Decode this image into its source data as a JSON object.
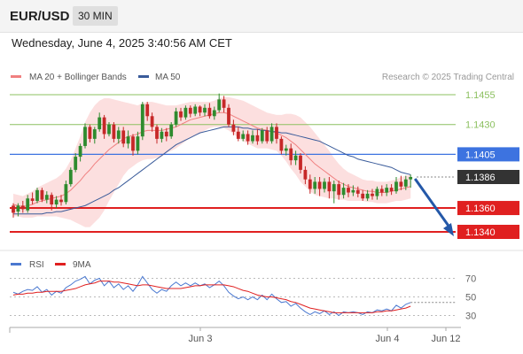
{
  "header": {
    "symbol": "EUR/USD",
    "timeframe": "30 MIN",
    "datetime": "Wednesday, June 4, 2025 3:40:56 AM CET"
  },
  "colors": {
    "up": "#2e8b2e",
    "down": "#c62828",
    "ma20": "#f08080",
    "bands": "#fcd9d9",
    "ma50": "#3a5b9a",
    "resistance_green": "#8cc060",
    "pivot_blue": "#3d73e0",
    "support_red": "#e02020",
    "current": "#333333",
    "rsi": "#4a78d0",
    "ma9": "#e02020"
  },
  "chart_data": [
    {
      "type": "candlestick",
      "legend": [
        "MA 20 + Bollinger Bands",
        "MA 50"
      ],
      "source": "Research © 2025 Trading Central",
      "ylim": [
        1.1325,
        1.1465
      ],
      "levels": [
        {
          "value": 1.1455,
          "label": "1.1455",
          "kind": "resistance"
        },
        {
          "value": 1.143,
          "label": "1.1430",
          "kind": "resistance"
        },
        {
          "value": 1.1405,
          "label": "1.1405",
          "kind": "pivot"
        },
        {
          "value": 1.1386,
          "label": "1.1386",
          "kind": "current"
        },
        {
          "value": 1.136,
          "label": "1.1360",
          "kind": "support"
        },
        {
          "value": 1.134,
          "label": "1.1340",
          "kind": "support"
        }
      ],
      "forecast_arrow": {
        "from": 1.1386,
        "to": 1.134
      },
      "candles": [
        [
          1.1362,
          1.1356,
          1.1364,
          1.1352
        ],
        [
          1.1357,
          1.1362,
          1.1364,
          1.1353
        ],
        [
          1.1362,
          1.1359,
          1.1366,
          1.1356
        ],
        [
          1.1358,
          1.1368,
          1.1371,
          1.1356
        ],
        [
          1.1368,
          1.1366,
          1.1373,
          1.1363
        ],
        [
          1.1366,
          1.1375,
          1.1377,
          1.1364
        ],
        [
          1.1375,
          1.1367,
          1.1377,
          1.1365
        ],
        [
          1.1367,
          1.1371,
          1.1374,
          1.1364
        ],
        [
          1.1371,
          1.1363,
          1.1373,
          1.1358
        ],
        [
          1.1363,
          1.1367,
          1.137,
          1.136
        ],
        [
          1.1367,
          1.1365,
          1.1371,
          1.1362
        ],
        [
          1.1365,
          1.138,
          1.1383,
          1.1363
        ],
        [
          1.138,
          1.1392,
          1.1394,
          1.1378
        ],
        [
          1.1392,
          1.1403,
          1.1406,
          1.139
        ],
        [
          1.1403,
          1.1412,
          1.1414,
          1.1399
        ],
        [
          1.1412,
          1.1428,
          1.1431,
          1.141
        ],
        [
          1.1428,
          1.1418,
          1.143,
          1.1415
        ],
        [
          1.1418,
          1.1426,
          1.1428,
          1.1414
        ],
        [
          1.1426,
          1.1436,
          1.144,
          1.1424
        ],
        [
          1.1436,
          1.1422,
          1.1438,
          1.1418
        ],
        [
          1.1422,
          1.143,
          1.1432,
          1.142
        ],
        [
          1.143,
          1.1418,
          1.1432,
          1.1415
        ],
        [
          1.1418,
          1.1425,
          1.1428,
          1.1414
        ],
        [
          1.1425,
          1.1414,
          1.1428,
          1.1411
        ],
        [
          1.1414,
          1.142,
          1.1425,
          1.141
        ],
        [
          1.142,
          1.1408,
          1.1422,
          1.1404
        ],
        [
          1.1408,
          1.142,
          1.1424,
          1.1405
        ],
        [
          1.142,
          1.1447,
          1.1449,
          1.1417
        ],
        [
          1.1447,
          1.1437,
          1.1449,
          1.1433
        ],
        [
          1.1437,
          1.1428,
          1.144,
          1.1424
        ],
        [
          1.1428,
          1.1418,
          1.143,
          1.1414
        ],
        [
          1.1418,
          1.1424,
          1.1427,
          1.1415
        ],
        [
          1.1424,
          1.142,
          1.1427,
          1.1416
        ],
        [
          1.142,
          1.143,
          1.1432,
          1.1418
        ],
        [
          1.143,
          1.1441,
          1.1444,
          1.1428
        ],
        [
          1.1441,
          1.1436,
          1.1444,
          1.1433
        ],
        [
          1.1436,
          1.1444,
          1.1446,
          1.1434
        ],
        [
          1.1444,
          1.1439,
          1.1446,
          1.1436
        ],
        [
          1.1439,
          1.1445,
          1.1447,
          1.1437
        ],
        [
          1.1445,
          1.144,
          1.1446,
          1.1437
        ],
        [
          1.144,
          1.1444,
          1.1447,
          1.1437
        ],
        [
          1.1444,
          1.1437,
          1.1448,
          1.1435
        ],
        [
          1.1437,
          1.1442,
          1.1445,
          1.1434
        ],
        [
          1.1442,
          1.1451,
          1.1456,
          1.144
        ],
        [
          1.1451,
          1.1444,
          1.1454,
          1.144
        ],
        [
          1.1444,
          1.143,
          1.1447,
          1.1428
        ],
        [
          1.143,
          1.1424,
          1.1434,
          1.1421
        ],
        [
          1.1424,
          1.1418,
          1.1428,
          1.1416
        ],
        [
          1.1418,
          1.1422,
          1.1425,
          1.1416
        ],
        [
          1.1422,
          1.1416,
          1.1425,
          1.1413
        ],
        [
          1.1416,
          1.1421,
          1.1425,
          1.1414
        ],
        [
          1.1421,
          1.1416,
          1.1426,
          1.1413
        ],
        [
          1.1416,
          1.1425,
          1.1427,
          1.1414
        ],
        [
          1.1425,
          1.1416,
          1.1428,
          1.1414
        ],
        [
          1.1416,
          1.1428,
          1.1431,
          1.1414
        ],
        [
          1.1428,
          1.1418,
          1.1431,
          1.1414
        ],
        [
          1.1418,
          1.1408,
          1.142,
          1.1405
        ],
        [
          1.1408,
          1.141,
          1.1413,
          1.1404
        ],
        [
          1.141,
          1.14,
          1.1414,
          1.1396
        ],
        [
          1.14,
          1.1404,
          1.1408,
          1.1396
        ],
        [
          1.1404,
          1.1392,
          1.1406,
          1.1389
        ],
        [
          1.1392,
          1.1384,
          1.1395,
          1.138
        ],
        [
          1.1384,
          1.1376,
          1.1388,
          1.1372
        ],
        [
          1.1376,
          1.1382,
          1.1386,
          1.1372
        ],
        [
          1.1382,
          1.1376,
          1.1386,
          1.137
        ],
        [
          1.1376,
          1.1382,
          1.1385,
          1.1373
        ],
        [
          1.1382,
          1.1374,
          1.1386,
          1.1368
        ],
        [
          1.1374,
          1.138,
          1.1383,
          1.1364
        ],
        [
          1.138,
          1.1371,
          1.1383,
          1.1367
        ],
        [
          1.1371,
          1.1377,
          1.1381,
          1.1368
        ],
        [
          1.1377,
          1.1373,
          1.138,
          1.1369
        ],
        [
          1.1373,
          1.1375,
          1.1379,
          1.137
        ],
        [
          1.1375,
          1.1372,
          1.1378,
          1.1369
        ],
        [
          1.1372,
          1.1368,
          1.1375,
          1.1366
        ],
        [
          1.1368,
          1.1372,
          1.1375,
          1.1366
        ],
        [
          1.1372,
          1.137,
          1.1376,
          1.1367
        ],
        [
          1.137,
          1.1376,
          1.1378,
          1.1367
        ],
        [
          1.1376,
          1.1373,
          1.1379,
          1.137
        ],
        [
          1.1373,
          1.1377,
          1.138,
          1.137
        ],
        [
          1.1377,
          1.1374,
          1.138,
          1.1371
        ],
        [
          1.1374,
          1.1382,
          1.1386,
          1.1372
        ],
        [
          1.1382,
          1.1378,
          1.1387,
          1.1375
        ],
        [
          1.1378,
          1.1384,
          1.1387,
          1.1375
        ],
        [
          1.1384,
          1.1386,
          1.1388,
          1.1377
        ]
      ],
      "ma20": [
        1.1363,
        1.1362,
        1.1361,
        1.1362,
        1.1363,
        1.1365,
        1.1366,
        1.1367,
        1.1368,
        1.1369,
        1.137,
        1.1372,
        1.1375,
        1.1379,
        1.1383,
        1.1388,
        1.1392,
        1.1397,
        1.1401,
        1.1405,
        1.1409,
        1.1412,
        1.1415,
        1.1418,
        1.142,
        1.1421,
        1.1422,
        1.1424,
        1.1425,
        1.1425,
        1.1425,
        1.1425,
        1.1426,
        1.1427,
        1.1428,
        1.143,
        1.1432,
        1.1434,
        1.1435,
        1.1436,
        1.1437,
        1.1438,
        1.1439,
        1.144,
        1.144,
        1.1439,
        1.1437,
        1.1435,
        1.1433,
        1.1431,
        1.1429,
        1.1427,
        1.1426,
        1.1425,
        1.1424,
        1.1423,
        1.1421,
        1.1419,
        1.1416,
        1.1413,
        1.1409,
        1.1405,
        1.1401,
        1.1397,
        1.1394,
        1.1391,
        1.1388,
        1.1385,
        1.1382,
        1.138,
        1.1378,
        1.1377,
        1.1376,
        1.1375,
        1.1374,
        1.1374,
        1.1373,
        1.1373,
        1.1373,
        1.1374,
        1.1375,
        1.1376,
        1.1377,
        1.1378
      ],
      "bb_upper": [
        1.1372,
        1.1371,
        1.137,
        1.1372,
        1.1374,
        1.1377,
        1.1379,
        1.1381,
        1.1383,
        1.1385,
        1.1388,
        1.1393,
        1.14,
        1.141,
        1.142,
        1.1432,
        1.144,
        1.1446,
        1.145,
        1.1452,
        1.1452,
        1.1451,
        1.145,
        1.1449,
        1.1448,
        1.1447,
        1.1446,
        1.1448,
        1.1449,
        1.1449,
        1.1448,
        1.1447,
        1.1446,
        1.1446,
        1.1446,
        1.1447,
        1.1448,
        1.1449,
        1.1449,
        1.1449,
        1.1449,
        1.1449,
        1.145,
        1.1452,
        1.1453,
        1.1453,
        1.1452,
        1.1451,
        1.145,
        1.1448,
        1.1446,
        1.1444,
        1.1442,
        1.144,
        1.1439,
        1.1438,
        1.1438,
        1.1439,
        1.1439,
        1.1438,
        1.1436,
        1.1432,
        1.1428,
        1.1423,
        1.1418,
        1.1413,
        1.1408,
        1.1402,
        1.1397,
        1.1393,
        1.139,
        1.1388,
        1.1386,
        1.1384,
        1.1383,
        1.1383,
        1.1382,
        1.1382,
        1.1382,
        1.1383,
        1.1384,
        1.1386,
        1.1387,
        1.1388
      ],
      "bb_lower": [
        1.1353,
        1.1353,
        1.1352,
        1.1352,
        1.1352,
        1.1353,
        1.1353,
        1.1353,
        1.1353,
        1.1353,
        1.1352,
        1.1351,
        1.135,
        1.1348,
        1.1346,
        1.1344,
        1.1344,
        1.1348,
        1.1352,
        1.1358,
        1.1366,
        1.1373,
        1.138,
        1.1387,
        1.1392,
        1.1395,
        1.1398,
        1.14,
        1.1401,
        1.1401,
        1.1402,
        1.1403,
        1.1406,
        1.1408,
        1.141,
        1.1413,
        1.1416,
        1.1419,
        1.1421,
        1.1423,
        1.1425,
        1.1427,
        1.1428,
        1.1428,
        1.1427,
        1.1425,
        1.1422,
        1.1419,
        1.1416,
        1.1414,
        1.1412,
        1.141,
        1.141,
        1.141,
        1.1409,
        1.1408,
        1.1404,
        1.1399,
        1.1393,
        1.1388,
        1.1382,
        1.1378,
        1.1374,
        1.1371,
        1.137,
        1.1369,
        1.1368,
        1.1368,
        1.1367,
        1.1367,
        1.1366,
        1.1366,
        1.1366,
        1.1366,
        1.1365,
        1.1365,
        1.1364,
        1.1364,
        1.1364,
        1.1365,
        1.1366,
        1.1366,
        1.1367,
        1.1368
      ],
      "ma50": [
        1.1355,
        1.1355,
        1.1355,
        1.1355,
        1.1355,
        1.1355,
        1.1355,
        1.1356,
        1.1356,
        1.1357,
        1.1357,
        1.1358,
        1.1359,
        1.136,
        1.1361,
        1.1362,
        1.1364,
        1.1366,
        1.1368,
        1.137,
        1.1372,
        1.1375,
        1.1377,
        1.138,
        1.1383,
        1.1386,
        1.1389,
        1.1392,
        1.1395,
        1.1398,
        1.1401,
        1.1404,
        1.1407,
        1.141,
        1.1413,
        1.1415,
        1.1417,
        1.1419,
        1.1421,
        1.1423,
        1.1424,
        1.1425,
        1.1426,
        1.1427,
        1.1428,
        1.1428,
        1.1428,
        1.1428,
        1.1427,
        1.1427,
        1.1426,
        1.1426,
        1.1425,
        1.1425,
        1.1424,
        1.1424,
        1.1423,
        1.1423,
        1.1422,
        1.1421,
        1.142,
        1.1419,
        1.1418,
        1.1417,
        1.1416,
        1.1414,
        1.1412,
        1.141,
        1.1408,
        1.1406,
        1.1404,
        1.1403,
        1.1401,
        1.14,
        1.1399,
        1.1398,
        1.1397,
        1.1396,
        1.1395,
        1.1394,
        1.1392,
        1.139,
        1.1389,
        1.1388
      ]
    },
    {
      "type": "line",
      "legend": [
        "RSI",
        "9MA"
      ],
      "ylim": [
        20,
        80
      ],
      "ticks": [
        70,
        50,
        30
      ],
      "x_labels": [
        "Jun 3",
        "Jun 4",
        "Jun 12"
      ],
      "series": [
        {
          "name": "RSI",
          "values": [
            55,
            53,
            56,
            58,
            57,
            61,
            55,
            58,
            52,
            56,
            54,
            60,
            63,
            67,
            69,
            72,
            64,
            68,
            70,
            62,
            67,
            60,
            64,
            58,
            62,
            56,
            63,
            72,
            65,
            58,
            54,
            58,
            56,
            62,
            66,
            62,
            65,
            62,
            65,
            62,
            64,
            60,
            63,
            67,
            62,
            55,
            51,
            48,
            50,
            47,
            50,
            47,
            52,
            47,
            53,
            48,
            44,
            45,
            40,
            43,
            38,
            34,
            31,
            34,
            32,
            35,
            31,
            34,
            30,
            34,
            33,
            34,
            33,
            31,
            34,
            33,
            36,
            35,
            37,
            35,
            41,
            38,
            42,
            44
          ]
        },
        {
          "name": "9MA",
          "values": [
            52,
            53,
            53,
            54,
            54,
            55,
            55,
            56,
            56,
            56,
            56,
            57,
            58,
            59,
            61,
            63,
            64,
            65,
            67,
            67,
            67,
            66,
            66,
            65,
            64,
            63,
            62,
            63,
            63,
            62,
            61,
            60,
            59,
            59,
            59,
            59,
            60,
            61,
            62,
            62,
            63,
            63,
            63,
            63,
            63,
            62,
            61,
            59,
            57,
            56,
            54,
            52,
            51,
            50,
            50,
            49,
            48,
            47,
            45,
            44,
            42,
            40,
            38,
            37,
            36,
            35,
            34,
            33,
            33,
            33,
            33,
            33,
            33,
            33,
            33,
            33,
            34,
            34,
            35,
            35,
            36,
            37,
            38,
            40
          ]
        }
      ]
    }
  ]
}
